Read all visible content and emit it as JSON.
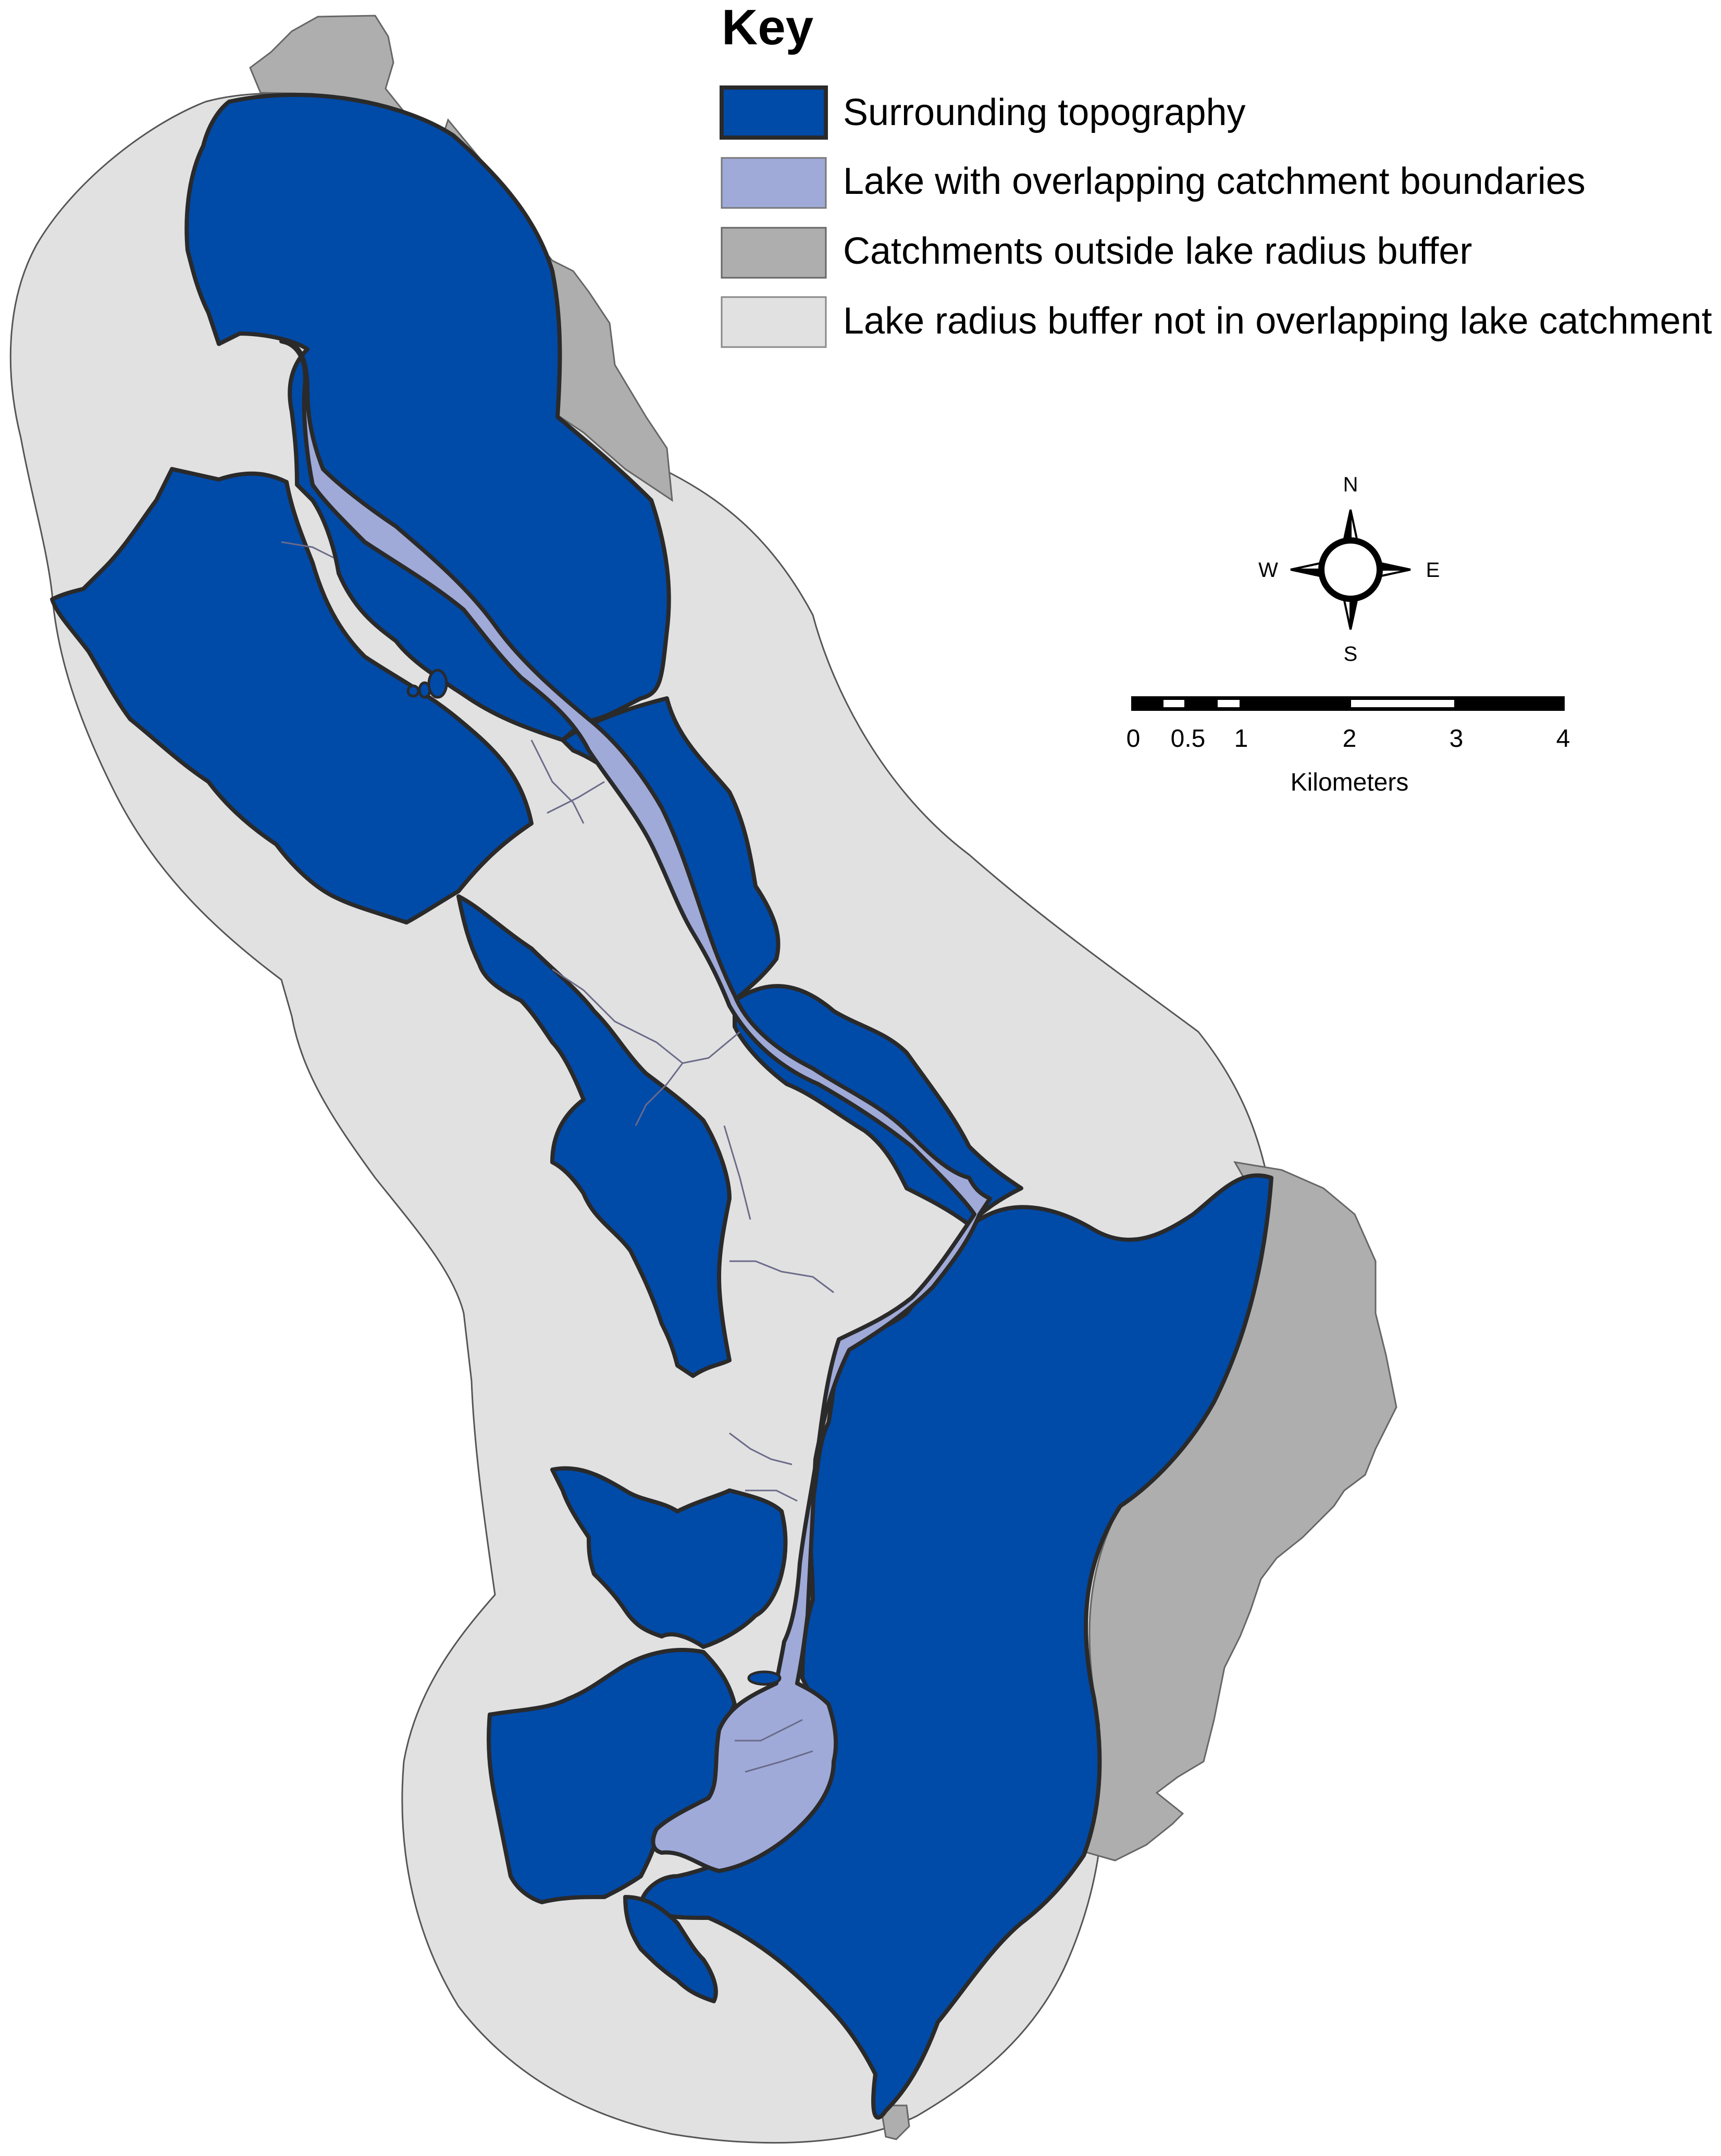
{
  "legend": {
    "title": "Key",
    "items": [
      {
        "label": "Surrounding topography",
        "color": "#004aa8"
      },
      {
        "label": "Lake with overlapping catchment boundaries",
        "color": "#9faad8"
      },
      {
        "label": "Catchments outside lake radius buffer",
        "color": "#aeaeae"
      },
      {
        "label": "Lake radius buffer not in overlapping lake catchment",
        "color": "#e1e1e1"
      }
    ]
  },
  "north_arrow": {
    "n": "N",
    "e": "E",
    "s": "S",
    "w": "W"
  },
  "scale_bar": {
    "ticks": [
      "0",
      "0.5",
      "1",
      "2",
      "3",
      "4"
    ],
    "unit": "Kilometers"
  },
  "colors": {
    "topography": "#004aa8",
    "lake": "#9faad8",
    "outside_catchment": "#aeaeae",
    "buffer": "#e1e1e1",
    "boundary": "#2a2a2a"
  }
}
